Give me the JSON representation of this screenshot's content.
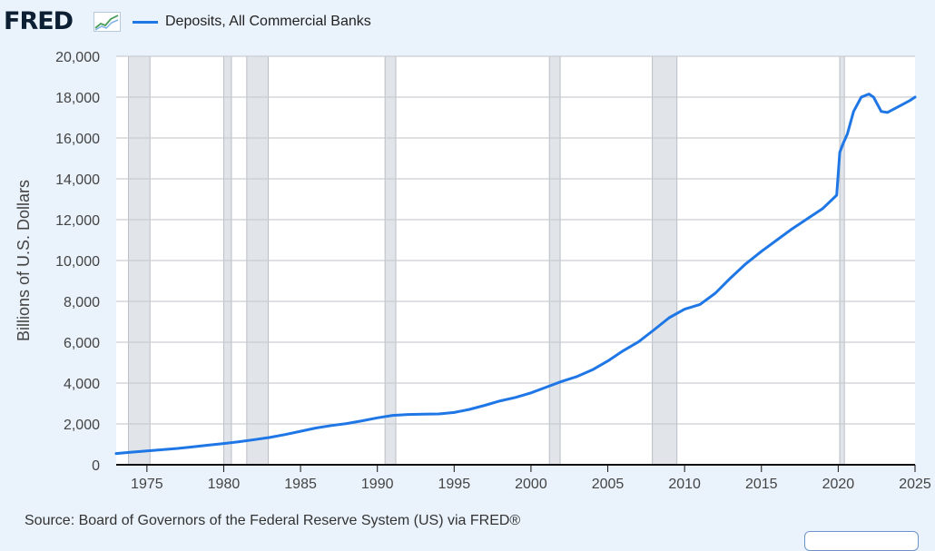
{
  "header": {
    "brand": "FRED",
    "brand_mark_icon": "trend-line-icon",
    "legend_label": "Deposits, All Commercial Banks",
    "legend_color": "#1f77e6"
  },
  "source_text": "Source: Board of Governors of the Federal Reserve System (US) via FRED®",
  "chart_data": {
    "type": "line",
    "title": "",
    "ylabel": "Billions of U.S. Dollars",
    "xlim": [
      1973.0,
      2025.0
    ],
    "ylim": [
      0,
      20000
    ],
    "x_ticks": [
      1975,
      1980,
      1985,
      1990,
      1995,
      2000,
      2005,
      2010,
      2015,
      2020,
      2025
    ],
    "x_tick_labels": [
      "1975",
      "1980",
      "1985",
      "1990",
      "1995",
      "2000",
      "2005",
      "2010",
      "2015",
      "2020",
      "2025"
    ],
    "y_ticks": [
      0,
      2000,
      4000,
      6000,
      8000,
      10000,
      12000,
      14000,
      16000,
      18000,
      20000
    ],
    "y_tick_labels": [
      "0",
      "2,000",
      "4,000",
      "6,000",
      "8,000",
      "10,000",
      "12,000",
      "14,000",
      "16,000",
      "18,000",
      "20,000"
    ],
    "grid": true,
    "recessions": [
      [
        1973.8,
        1975.2
      ],
      [
        1980.0,
        1980.5
      ],
      [
        1981.5,
        1982.9
      ],
      [
        1990.5,
        1991.2
      ],
      [
        2001.2,
        2001.9
      ],
      [
        2007.9,
        2009.5
      ],
      [
        2020.1,
        2020.4
      ]
    ],
    "series": [
      {
        "name": "Deposits, All Commercial Banks",
        "color": "#1f77e6",
        "x": [
          1973.0,
          1974.0,
          1975.0,
          1976.0,
          1977.0,
          1978.0,
          1979.0,
          1980.0,
          1981.0,
          1982.0,
          1983.0,
          1984.0,
          1985.0,
          1986.0,
          1987.0,
          1988.0,
          1989.0,
          1990.0,
          1991.0,
          1992.0,
          1993.0,
          1994.0,
          1995.0,
          1996.0,
          1997.0,
          1998.0,
          1999.0,
          2000.0,
          2001.0,
          2002.0,
          2003.0,
          2004.0,
          2005.0,
          2006.0,
          2007.0,
          2008.0,
          2009.0,
          2010.0,
          2011.0,
          2012.0,
          2013.0,
          2014.0,
          2015.0,
          2016.0,
          2017.0,
          2018.0,
          2019.0,
          2019.9,
          2020.1,
          2020.3,
          2020.6,
          2021.0,
          2021.5,
          2022.0,
          2022.3,
          2022.8,
          2023.2,
          2023.7,
          2024.2,
          2024.7,
          2025.0
        ],
        "values": [
          550,
          620,
          680,
          740,
          800,
          880,
          960,
          1040,
          1130,
          1230,
          1340,
          1480,
          1640,
          1800,
          1920,
          2020,
          2150,
          2300,
          2420,
          2460,
          2480,
          2490,
          2560,
          2710,
          2910,
          3130,
          3300,
          3520,
          3800,
          4080,
          4320,
          4650,
          5080,
          5580,
          6020,
          6600,
          7200,
          7620,
          7850,
          8400,
          9150,
          9850,
          10450,
          11000,
          11550,
          12050,
          12550,
          13200,
          15300,
          15700,
          16200,
          17300,
          18000,
          18150,
          18000,
          17300,
          17250,
          17450,
          17650,
          17850,
          18000
        ]
      }
    ]
  }
}
